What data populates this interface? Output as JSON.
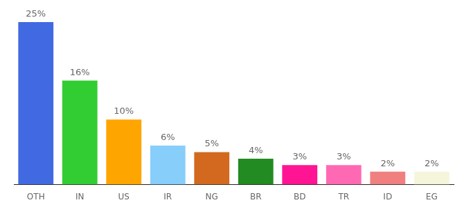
{
  "chart_data": {
    "type": "bar",
    "categories": [
      "OTH",
      "IN",
      "US",
      "IR",
      "NG",
      "BR",
      "BD",
      "TR",
      "ID",
      "EG"
    ],
    "values": [
      25,
      16,
      10,
      6,
      5,
      4,
      3,
      3,
      2,
      2
    ],
    "value_labels": [
      "25%",
      "16%",
      "10%",
      "6%",
      "5%",
      "4%",
      "3%",
      "3%",
      "2%",
      "2%"
    ],
    "colors": [
      "#4169e1",
      "#32cd32",
      "#ffa500",
      "#87cefa",
      "#d2691e",
      "#228b22",
      "#ff1493",
      "#ff69b4",
      "#f08080",
      "#f5f5dc"
    ],
    "data_labels": true,
    "tick_labels": "x",
    "grid": false
  }
}
